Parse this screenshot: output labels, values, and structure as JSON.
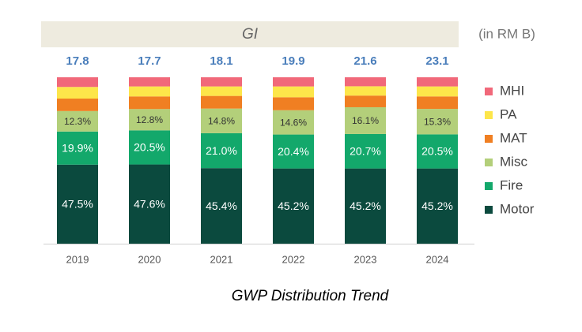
{
  "chart_data": {
    "type": "stacked_bar_100",
    "header": "GI",
    "unit_note": "(in RM B)",
    "caption": "GWP Distribution Trend",
    "categories": [
      "2019",
      "2020",
      "2021",
      "2022",
      "2023",
      "2024"
    ],
    "totals": [
      17.8,
      17.7,
      18.1,
      19.9,
      21.6,
      23.1
    ],
    "series": [
      {
        "name": "Motor",
        "color": "#0b4a3e",
        "label_color": "#ffffff",
        "values": [
          47.5,
          47.6,
          45.4,
          45.2,
          45.2,
          45.2
        ],
        "value_labels": [
          "47.5%",
          "47.6%",
          "45.4%",
          "45.2%",
          "45.2%",
          "45.2%"
        ]
      },
      {
        "name": "Fire",
        "color": "#13a86b",
        "label_color": "#ffffff",
        "values": [
          19.9,
          20.5,
          21.0,
          20.4,
          20.7,
          20.5
        ],
        "value_labels": [
          "19.9%",
          "20.5%",
          "21.0%",
          "20.4%",
          "20.7%",
          "20.5%"
        ]
      },
      {
        "name": "Misc",
        "color": "#b3cf7a",
        "label_color": "#333333",
        "values": [
          12.3,
          12.8,
          14.8,
          14.6,
          16.1,
          15.3
        ],
        "value_labels": [
          "12.3%",
          "12.8%",
          "14.8%",
          "14.6%",
          "16.1%",
          "15.3%"
        ]
      },
      {
        "name": "MAT",
        "color": "#f07f22",
        "values": [
          7.5,
          7.6,
          7.6,
          7.8,
          7.0,
          7.5
        ]
      },
      {
        "name": "PA",
        "color": "#fde64a",
        "values": [
          7.0,
          6.0,
          5.7,
          6.5,
          5.6,
          6.0
        ]
      },
      {
        "name": "MHI",
        "color": "#f1687a",
        "values": [
          5.8,
          5.5,
          5.5,
          5.5,
          5.4,
          5.5
        ]
      }
    ]
  }
}
